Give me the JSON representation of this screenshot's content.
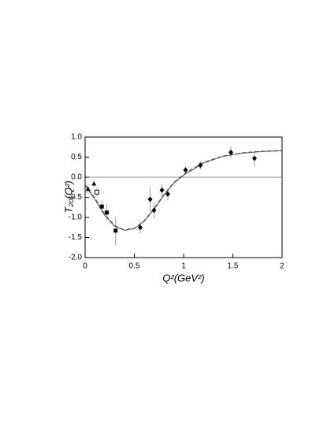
{
  "chart_data": {
    "type": "scatter",
    "x_label": "Q²(GeV²)",
    "y_label": "T₂₀(Q²)",
    "xlim": [
      0,
      2
    ],
    "ylim": [
      -2.0,
      1.0
    ],
    "xticks": [
      0,
      0.5,
      1,
      1.5,
      2
    ],
    "yticks": [
      {
        "value": -2.0,
        "label": "-2.0"
      },
      -1.5,
      {
        "value": -1.0,
        "label": "-1.0"
      },
      -0.5,
      {
        "value": 0.0,
        "label": "0.0"
      },
      0.5,
      {
        "value": 1.0,
        "label": "1.0"
      }
    ],
    "series": [
      {
        "mode": "line",
        "style": "solid",
        "color": "#555555",
        "x": [
          0,
          0.1,
          0.2,
          0.3,
          0.4,
          0.5,
          0.6,
          0.7,
          0.8,
          0.9,
          1.0,
          1.2,
          1.4,
          1.6,
          1.8,
          2.0
        ],
        "values": [
          -0.2,
          -0.55,
          -0.95,
          -1.22,
          -1.32,
          -1.28,
          -1.1,
          -0.8,
          -0.45,
          -0.15,
          0.05,
          0.35,
          0.52,
          0.6,
          0.64,
          0.66
        ]
      },
      {
        "mode": "line",
        "style": "dashed",
        "color": "#555555",
        "x": [
          0,
          0.1,
          0.2,
          0.3,
          0.4,
          0.5,
          0.6,
          0.7,
          0.8,
          0.9,
          1.0,
          1.2,
          1.4,
          1.6,
          1.8,
          2.0
        ],
        "values": [
          -0.18,
          -0.52,
          -0.92,
          -1.2,
          -1.31,
          -1.27,
          -1.08,
          -0.78,
          -0.43,
          -0.13,
          0.07,
          0.37,
          0.53,
          0.61,
          0.65,
          0.67
        ]
      },
      {
        "mode": "points",
        "marker": "triangle",
        "color": "#000000",
        "x": [
          0.03,
          0.09
        ],
        "values": [
          -0.29,
          -0.16
        ],
        "errors": [
          0.1,
          0.08
        ]
      },
      {
        "mode": "points",
        "marker": "open-square",
        "color": "#000000",
        "x": [
          0.12
        ],
        "values": [
          -0.37
        ],
        "errors": [
          0.1
        ]
      },
      {
        "mode": "points",
        "marker": "square",
        "color": "#000000",
        "x": [
          0.17,
          0.22,
          0.31
        ],
        "values": [
          -0.73,
          -0.88,
          -1.33
        ],
        "errors": [
          0.15,
          0.2,
          0.35
        ]
      },
      {
        "mode": "points",
        "marker": "diamond",
        "color": "#000000",
        "x": [
          0.56,
          0.66,
          0.7,
          0.78,
          0.84,
          1.02,
          1.17,
          1.48,
          1.72
        ],
        "values": [
          -1.25,
          -0.55,
          -0.82,
          -0.32,
          -0.42,
          0.18,
          0.3,
          0.62,
          0.47
        ],
        "errors": [
          0.15,
          0.3,
          0.2,
          0.15,
          0.15,
          0.08,
          0.1,
          0.15,
          0.2
        ]
      }
    ]
  }
}
